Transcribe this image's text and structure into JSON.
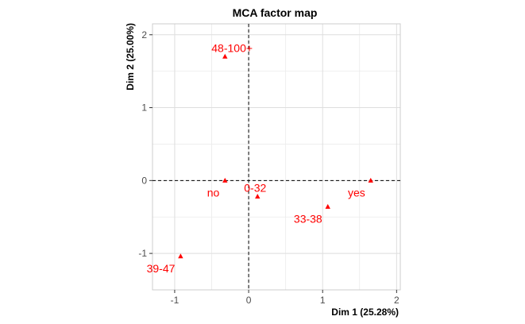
{
  "chart_data": {
    "type": "scatter",
    "title": "MCA factor map",
    "xlabel": "Dim 1 (25.28%)",
    "ylabel": "Dim 2 (25.00%)",
    "xlim": [
      -1.3,
      2.05
    ],
    "ylim": [
      -1.5,
      2.15
    ],
    "xticks": [
      -1,
      0,
      1,
      2
    ],
    "xtick_labels": [
      "-1",
      "0",
      "1",
      "2"
    ],
    "yticks": [
      -1,
      0,
      1,
      2
    ],
    "ytick_labels": [
      "-1",
      "0",
      "1",
      "2"
    ],
    "grid": true,
    "reference_lines": {
      "x": 0,
      "y": 0,
      "style": "dashed"
    },
    "point_color": "#ff0000",
    "points": [
      {
        "label": "48-100+",
        "x": -0.32,
        "y": 1.7,
        "label_pos": "above-right"
      },
      {
        "label": "no",
        "x": -0.32,
        "y": 0.0,
        "label_pos": "below-left"
      },
      {
        "label": "0-32",
        "x": 0.12,
        "y": -0.22,
        "label_pos": "above-right"
      },
      {
        "label": "yes",
        "x": 1.65,
        "y": 0.0,
        "label_pos": "below-left"
      },
      {
        "label": "33-38",
        "x": 1.07,
        "y": -0.36,
        "label_pos": "below-left"
      },
      {
        "label": "39-47",
        "x": -0.92,
        "y": -1.04,
        "label_pos": "below-left"
      }
    ]
  }
}
